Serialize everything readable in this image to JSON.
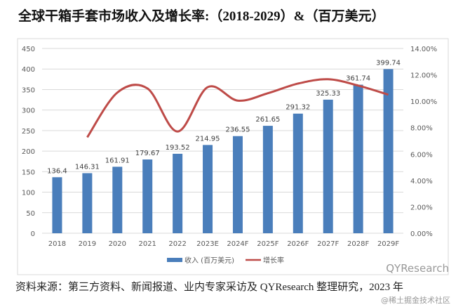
{
  "title": "全球干箱手套市场收入及增长率:（2018-2029）&（百万美元）",
  "source": "资料来源：第三方资料、新闻报道、业内专家采访及 QYResearch 整理研究，2023 年",
  "watermark": {
    "line1": "QYResearch",
    "line2": "@稀土掘金技术社区"
  },
  "chart_data": {
    "type": "bar",
    "title": "全球干箱手套市场收入及增长率:（2018-2029）&（百万美元）",
    "categories": [
      "2018",
      "2019",
      "2020",
      "2021",
      "2022",
      "2023E",
      "2024F",
      "2025F",
      "2026F",
      "2027F",
      "2028F",
      "2029F"
    ],
    "series": [
      {
        "name": "收入 (百万美元)",
        "type": "bar",
        "axis": "left",
        "color": "#4a7ebb",
        "values": [
          136.4,
          146.31,
          161.91,
          179.67,
          193.52,
          214.95,
          236.55,
          261.65,
          291.32,
          325.33,
          361.74,
          399.74
        ],
        "labels": [
          "136.4",
          "146.31",
          "161.91",
          "179.67",
          "193.52",
          "214.95",
          "236.55",
          "261.65",
          "291.32",
          "325.33",
          "361.74",
          "399.74"
        ]
      },
      {
        "name": "增长率",
        "type": "line",
        "axis": "right",
        "color": "#be4b48",
        "smooth": true,
        "values": [
          null,
          7.27,
          10.66,
          10.97,
          7.71,
          11.07,
          10.05,
          10.61,
          11.34,
          11.67,
          11.19,
          10.5
        ]
      }
    ],
    "y_left": {
      "range": [
        0,
        450
      ],
      "ticks": [
        "0",
        "50",
        "100",
        "150",
        "200",
        "250",
        "300",
        "350",
        "400",
        "450"
      ]
    },
    "y_right": {
      "range": [
        0,
        14
      ],
      "unit": "%",
      "ticks": [
        "0.00%",
        "2.00%",
        "4.00%",
        "6.00%",
        "8.00%",
        "10.00%",
        "12.00%",
        "14.00%"
      ]
    },
    "grid": true,
    "legend": "bottom"
  }
}
